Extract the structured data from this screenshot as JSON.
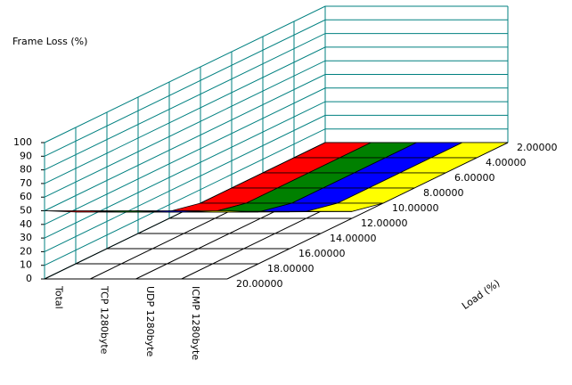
{
  "chart_data": {
    "type": "surface",
    "y_label": "Frame Loss (%)",
    "x_label": "Load (%)",
    "categories": [
      "2.00000",
      "4.00000",
      "6.00000",
      "8.00000",
      "10.00000",
      "12.00000",
      "14.00000",
      "16.00000",
      "18.00000",
      "20.00000"
    ],
    "series": [
      {
        "name": "Total",
        "color": "#ff0000",
        "values": [
          0,
          0,
          0,
          0,
          0,
          5,
          16,
          27,
          38,
          50
        ]
      },
      {
        "name": "TCP 1280byte",
        "color": "#008000",
        "values": [
          0,
          0,
          0,
          0,
          0,
          5,
          16,
          27,
          38,
          50
        ]
      },
      {
        "name": "UDP 1280byte",
        "color": "#0000ff",
        "values": [
          0,
          0,
          0,
          0,
          0,
          5,
          16,
          27,
          38,
          50
        ]
      },
      {
        "name": "ICMP 1280byte",
        "color": "#ffff00",
        "values": [
          0,
          0,
          0,
          0,
          0,
          5,
          16,
          27,
          38,
          50
        ]
      }
    ],
    "ylim": [
      0,
      100
    ],
    "yticks": [
      0,
      10,
      20,
      30,
      40,
      50,
      60,
      70,
      80,
      90,
      100
    ],
    "grid": true
  }
}
